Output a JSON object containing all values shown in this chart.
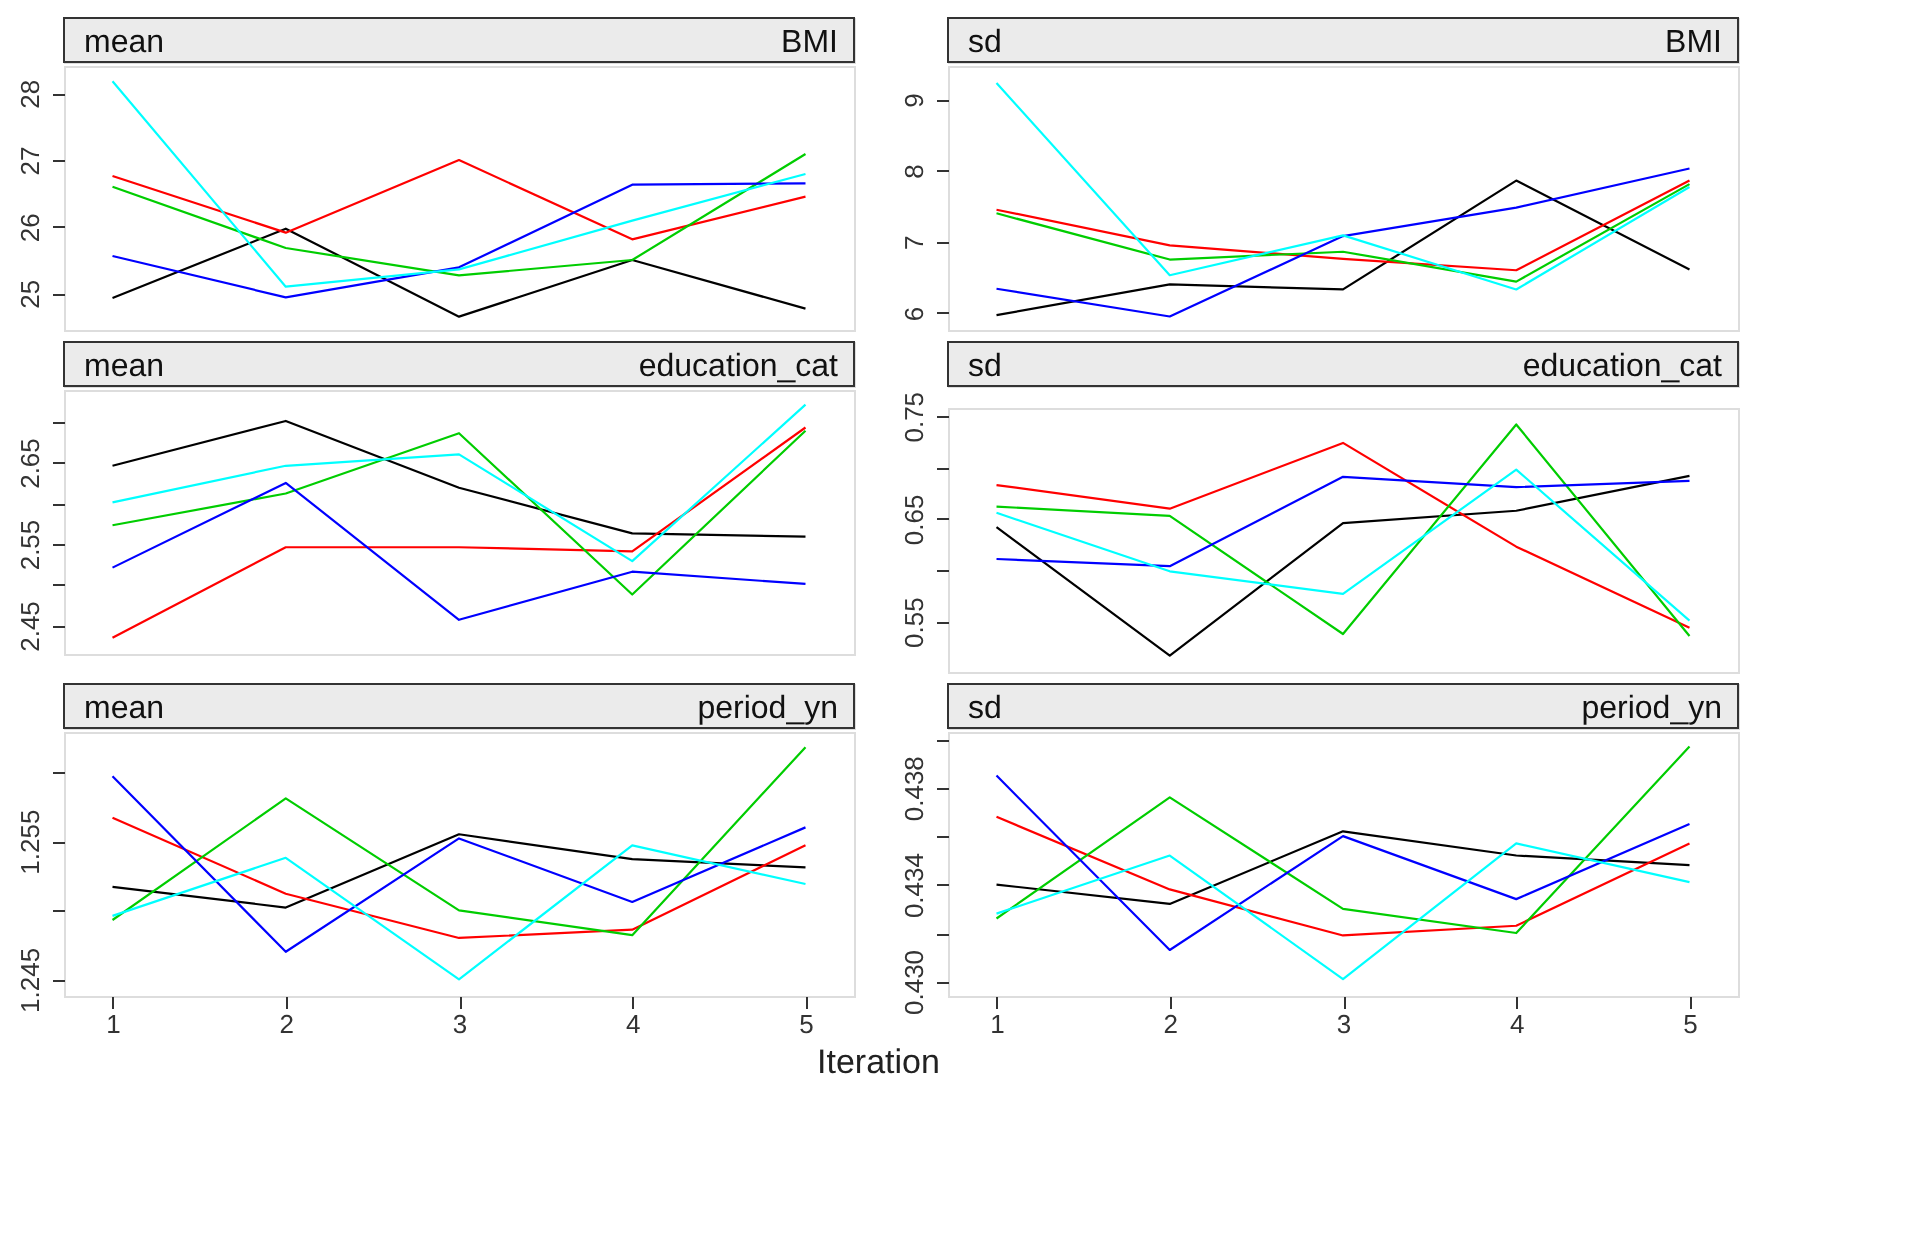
{
  "chart_data": [
    {
      "type": "line",
      "title": "mean",
      "subtitle": "BMI",
      "x": [
        1,
        2,
        3,
        4,
        5
      ],
      "xlim": [
        0.72,
        5.28
      ],
      "xticks": [
        1,
        2,
        3,
        4,
        5
      ],
      "ylim": [
        24.45,
        28.41
      ],
      "yticks": [
        25,
        26,
        27,
        28
      ],
      "tick_labels": "y",
      "grid": false,
      "legend": false,
      "marker": "none",
      "series": [
        {
          "color": "#000000",
          "values": [
            24.93,
            25.97,
            24.65,
            25.5,
            24.77
          ]
        },
        {
          "color": "#ff0000",
          "values": [
            26.76,
            25.91,
            27.0,
            25.81,
            26.45
          ]
        },
        {
          "color": "#00cd00",
          "values": [
            26.6,
            25.68,
            25.27,
            25.5,
            27.09
          ]
        },
        {
          "color": "#0000ff",
          "values": [
            25.56,
            24.94,
            25.39,
            26.63,
            26.65
          ]
        },
        {
          "color": "#00ffff",
          "values": [
            28.18,
            25.1,
            25.36,
            26.09,
            26.79
          ]
        }
      ]
    },
    {
      "type": "line",
      "title": "sd",
      "subtitle": "BMI",
      "x": [
        1,
        2,
        3,
        4,
        5
      ],
      "xlim": [
        0.72,
        5.28
      ],
      "xticks": [
        1,
        2,
        3,
        4,
        5
      ],
      "ylim": [
        5.76,
        9.47
      ],
      "yticks": [
        6,
        7,
        8,
        9
      ],
      "tick_labels": "y",
      "grid": false,
      "legend": false,
      "marker": "none",
      "series": [
        {
          "color": "#000000",
          "values": [
            5.97,
            6.4,
            6.33,
            7.86,
            6.61
          ]
        },
        {
          "color": "#ff0000",
          "values": [
            7.45,
            6.95,
            6.76,
            6.6,
            7.86
          ]
        },
        {
          "color": "#00cd00",
          "values": [
            7.4,
            6.75,
            6.86,
            6.44,
            7.81
          ]
        },
        {
          "color": "#0000ff",
          "values": [
            6.34,
            5.95,
            7.08,
            7.48,
            8.03
          ]
        },
        {
          "color": "#00ffff",
          "values": [
            9.23,
            6.53,
            7.09,
            6.33,
            7.77
          ]
        }
      ]
    },
    {
      "type": "line",
      "title": "mean",
      "subtitle": "education_cat",
      "x": [
        1,
        2,
        3,
        4,
        5
      ],
      "xlim": [
        0.72,
        5.28
      ],
      "xticks": [
        1,
        2,
        3,
        4,
        5
      ],
      "ylim": [
        2.415,
        2.739
      ],
      "yticks": [
        2.45,
        {
          "value": 2.5,
          "label": null
        },
        2.55,
        {
          "value": 2.6,
          "label": null
        },
        2.65,
        {
          "value": 2.7,
          "label": null
        }
      ],
      "tick_labels": "y",
      "grid": false,
      "legend": false,
      "marker": "none",
      "series": [
        {
          "color": "#000000",
          "values": [
            2.646,
            2.701,
            2.619,
            2.563,
            2.559
          ]
        },
        {
          "color": "#ff0000",
          "values": [
            2.435,
            2.546,
            2.546,
            2.541,
            2.693
          ]
        },
        {
          "color": "#00cd00",
          "values": [
            2.573,
            2.612,
            2.686,
            2.488,
            2.689
          ]
        },
        {
          "color": "#0000ff",
          "values": [
            2.521,
            2.625,
            2.457,
            2.516,
            2.501
          ]
        },
        {
          "color": "#00ffff",
          "values": [
            2.601,
            2.646,
            2.66,
            2.529,
            2.721
          ]
        }
      ]
    },
    {
      "type": "line",
      "title": "sd",
      "subtitle": "education_cat",
      "x": [
        1,
        2,
        3,
        4,
        5
      ],
      "xlim": [
        0.72,
        5.28
      ],
      "xticks": [
        1,
        2,
        3,
        4,
        5
      ],
      "ylim": [
        0.501,
        0.758
      ],
      "yticks": [
        0.55,
        {
          "value": 0.6,
          "label": null
        },
        0.65,
        {
          "value": 0.7,
          "label": null
        },
        0.75
      ],
      "tick_labels": "y",
      "grid": false,
      "legend": false,
      "marker": "none",
      "series": [
        {
          "color": "#000000",
          "values": [
            0.642,
            0.517,
            0.646,
            0.658,
            0.692
          ]
        },
        {
          "color": "#ff0000",
          "values": [
            0.683,
            0.66,
            0.724,
            0.623,
            0.544
          ]
        },
        {
          "color": "#00cd00",
          "values": [
            0.662,
            0.653,
            0.538,
            0.742,
            0.536
          ]
        },
        {
          "color": "#0000ff",
          "values": [
            0.611,
            0.604,
            0.691,
            0.681,
            0.687
          ]
        },
        {
          "color": "#00ffff",
          "values": [
            0.656,
            0.599,
            0.577,
            0.698,
            0.551
          ]
        }
      ]
    },
    {
      "type": "line",
      "title": "mean",
      "subtitle": "period_yn",
      "xlabel": "Iteration",
      "x": [
        1,
        2,
        3,
        4,
        5
      ],
      "xlim": [
        0.72,
        5.28
      ],
      "xticks": [
        1,
        2,
        3,
        4,
        5
      ],
      "ylim": [
        1.2438,
        1.2629
      ],
      "yticks": [
        1.245,
        {
          "value": 1.25,
          "label": null
        },
        1.255,
        {
          "value": 1.26,
          "label": null
        }
      ],
      "grid": false,
      "legend": false,
      "marker": "none",
      "series": [
        {
          "color": "#000000",
          "values": [
            1.2517,
            1.2502,
            1.2555,
            1.2537,
            1.2531
          ]
        },
        {
          "color": "#ff0000",
          "values": [
            1.2567,
            1.2512,
            1.248,
            1.2486,
            1.2547
          ]
        },
        {
          "color": "#00cd00",
          "values": [
            1.2493,
            1.2581,
            1.25,
            1.2482,
            1.2618
          ]
        },
        {
          "color": "#0000ff",
          "values": [
            1.2597,
            1.247,
            1.2552,
            1.2506,
            1.256
          ]
        },
        {
          "color": "#00ffff",
          "values": [
            1.2496,
            1.2538,
            1.245,
            1.2547,
            1.2519
          ]
        }
      ]
    },
    {
      "type": "line",
      "title": "sd",
      "subtitle": "period_yn",
      "x": [
        1,
        2,
        3,
        4,
        5
      ],
      "xlim": [
        0.72,
        5.28
      ],
      "xticks": [
        1,
        2,
        3,
        4,
        5
      ],
      "ylim": [
        0.4294,
        0.4403
      ],
      "yticks": [
        {
          "value": 0.43,
          "label": "0.430"
        },
        {
          "value": 0.432,
          "label": null
        },
        0.434,
        {
          "value": 0.436,
          "label": null
        },
        0.438,
        {
          "value": 0.44,
          "label": null
        }
      ],
      "grid": false,
      "legend": false,
      "marker": "none",
      "series": [
        {
          "color": "#000000",
          "values": [
            0.434,
            0.4332,
            0.4362,
            0.4352,
            0.4348
          ]
        },
        {
          "color": "#ff0000",
          "values": [
            0.4368,
            0.4338,
            0.4319,
            0.4323,
            0.4357
          ]
        },
        {
          "color": "#00cd00",
          "values": [
            0.4326,
            0.4376,
            0.433,
            0.432,
            0.4397
          ]
        },
        {
          "color": "#0000ff",
          "values": [
            0.4385,
            0.4313,
            0.436,
            0.4334,
            0.4365
          ]
        },
        {
          "color": "#00ffff",
          "values": [
            0.4328,
            0.4352,
            0.4301,
            0.4357,
            0.4341
          ]
        }
      ]
    }
  ]
}
